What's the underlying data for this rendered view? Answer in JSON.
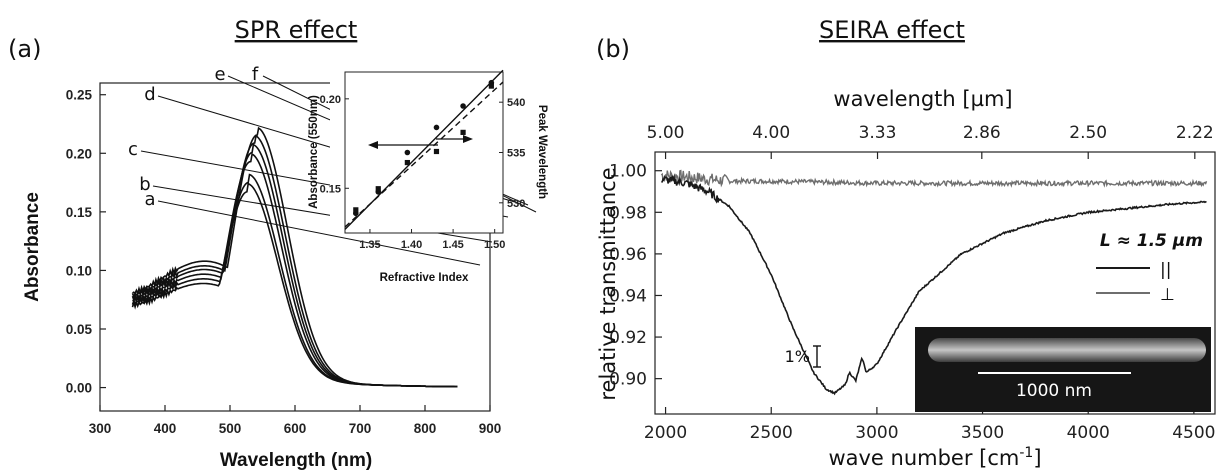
{
  "panel_a": {
    "label": "(a)",
    "title": "SPR effect"
  },
  "panel_b": {
    "label": "(b)",
    "title": "SEIRA effect"
  },
  "chart_data": [
    {
      "type": "line",
      "xlabel": "Wavelength (nm)",
      "ylabel": "Absorbance",
      "xlim": [
        300,
        900
      ],
      "ylim": [
        -0.02,
        0.26
      ],
      "x_ticks": [
        300,
        400,
        500,
        600,
        700,
        800,
        900
      ],
      "y_ticks": [
        0.0,
        0.05,
        0.1,
        0.15,
        0.2,
        0.25
      ],
      "x_tick_labels": [
        "300",
        "400",
        "500",
        "600",
        "700",
        "800",
        "900"
      ],
      "y_tick_labels": [
        "0.00",
        "0.05",
        "0.10",
        "0.15",
        "0.20",
        "0.25"
      ],
      "series": [
        {
          "name": "a",
          "peak_x": 527,
          "peak_y": 0.163,
          "start_y": 0.102,
          "min_y": 0.081
        },
        {
          "name": "b",
          "peak_x": 529,
          "peak_y": 0.171,
          "start_y": 0.106,
          "min_y": 0.085
        },
        {
          "name": "c",
          "peak_x": 532,
          "peak_y": 0.189,
          "start_y": 0.11,
          "min_y": 0.089
        },
        {
          "name": "d",
          "peak_x": 535,
          "peak_y": 0.197,
          "start_y": 0.114,
          "min_y": 0.093
        },
        {
          "name": "e",
          "peak_x": 538,
          "peak_y": 0.205,
          "start_y": 0.118,
          "min_y": 0.096
        },
        {
          "name": "f",
          "peak_x": 542,
          "peak_y": 0.212,
          "start_y": 0.122,
          "min_y": 0.1
        }
      ],
      "inset": {
        "type": "scatter",
        "xlabel": "Refractive Index",
        "ylabel_left": "Absorbance (550nm)",
        "ylabel_right": "Peak Wavelength",
        "xlim": [
          1.32,
          1.51
        ],
        "ylim_left": [
          0.125,
          0.215
        ],
        "ylim_right": [
          527,
          543
        ],
        "x_ticks": [
          "1.35",
          "1.40",
          "1.45",
          "1.50"
        ],
        "y_ticks_left": [
          "0.15",
          "0.20"
        ],
        "y_ticks_right": [
          "530",
          "535",
          "540"
        ],
        "absorbance_points": [
          [
            1.333,
            0.136
          ],
          [
            1.36,
            0.148
          ],
          [
            1.395,
            0.17
          ],
          [
            1.43,
            0.184
          ],
          [
            1.462,
            0.196
          ],
          [
            1.496,
            0.209
          ]
        ],
        "peak_wavelength_points": [
          [
            1.333,
            529.3
          ],
          [
            1.36,
            531.4
          ],
          [
            1.395,
            534.0
          ],
          [
            1.43,
            535.1
          ],
          [
            1.462,
            537.0
          ],
          [
            1.496,
            541.6
          ]
        ]
      }
    },
    {
      "type": "line",
      "xlabel": "wave number [cm-1]",
      "xlabel_top": "wavelength [µm]",
      "ylabel": "relative transmittance",
      "xlim": [
        1950,
        4600
      ],
      "ylim": [
        0.883,
        1.009
      ],
      "x_ticks": [
        2000,
        2500,
        3000,
        3500,
        4000,
        4500
      ],
      "x_tick_labels": [
        "2000",
        "2500",
        "3000",
        "3500",
        "4000",
        "4500"
      ],
      "top_ticks": [
        "5.00",
        "4.00",
        "3.33",
        "2.86",
        "2.50",
        "2.22"
      ],
      "y_ticks": [
        0.9,
        0.92,
        0.94,
        0.96,
        0.98,
        1.0
      ],
      "y_tick_labels": [
        "0.90",
        "0.92",
        "0.94",
        "0.96",
        "0.98",
        "1.00"
      ],
      "legend_title": "L ≈ 1.5 µm",
      "legend_position": "right",
      "series": [
        {
          "name": "||",
          "color": "#1a1a1a",
          "x": [
            1980,
            2100,
            2200,
            2300,
            2400,
            2500,
            2600,
            2700,
            2760,
            2800,
            2850,
            2870,
            2900,
            2930,
            2950,
            3000,
            3100,
            3200,
            3400,
            3600,
            3800,
            4000,
            4200,
            4400,
            4560
          ],
          "y": [
            0.996,
            0.994,
            0.99,
            0.983,
            0.97,
            0.95,
            0.925,
            0.903,
            0.895,
            0.893,
            0.897,
            0.903,
            0.899,
            0.91,
            0.903,
            0.907,
            0.925,
            0.942,
            0.96,
            0.97,
            0.976,
            0.98,
            0.982,
            0.984,
            0.985
          ]
        },
        {
          "name": "⊥",
          "color": "#6e6e6e",
          "x": [
            1980,
            2100,
            2200,
            2300,
            2500,
            3000,
            3500,
            4000,
            4560
          ],
          "y": [
            0.998,
            0.997,
            0.996,
            0.995,
            0.995,
            0.994,
            0.994,
            0.994,
            0.994
          ]
        }
      ],
      "scale_bar_label": "1%",
      "inset_image": {
        "scale_label": "1000 nm"
      }
    }
  ]
}
